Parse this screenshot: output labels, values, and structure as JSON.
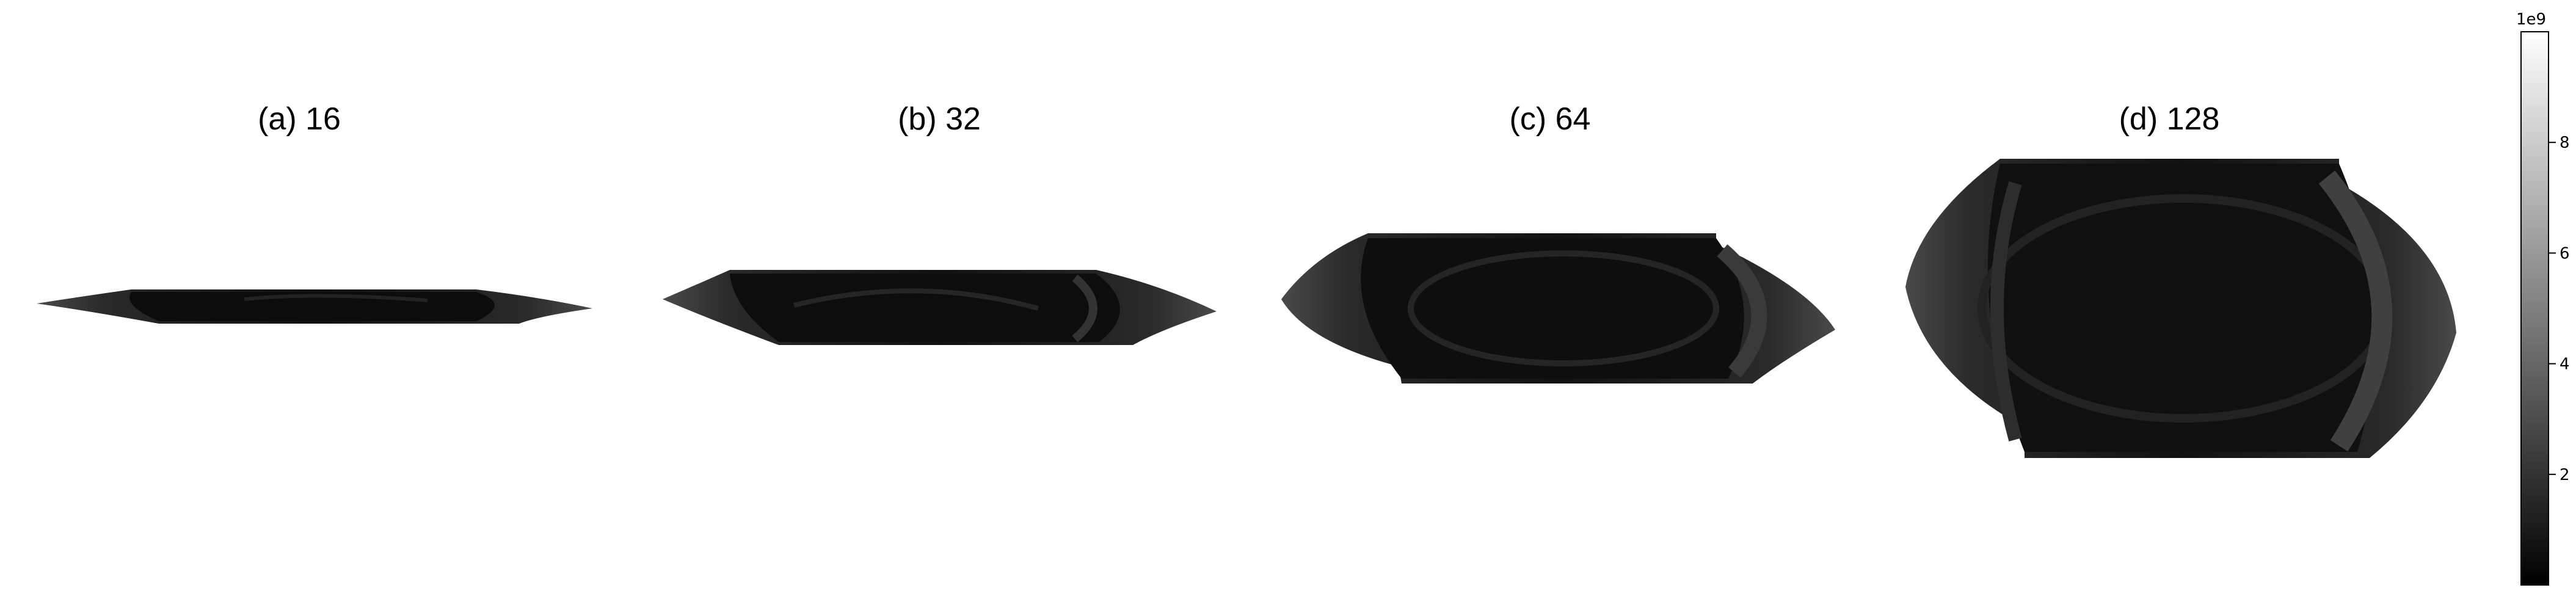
{
  "figure": {
    "panels": [
      {
        "label": "(a) 16"
      },
      {
        "label": "(b) 32"
      },
      {
        "label": "(c) 64"
      },
      {
        "label": "(d) 128"
      }
    ],
    "colorbar": {
      "exponent_label": "1e9",
      "ticks": [
        "2",
        "4",
        "6",
        "8"
      ]
    }
  },
  "chart_data": {
    "type": "heatmap",
    "panels": [
      {
        "title": "(a) 16",
        "n": 16
      },
      {
        "title": "(b) 32",
        "n": 32
      },
      {
        "title": "(c) 64",
        "n": 64
      },
      {
        "title": "(d) 128",
        "n": 128
      }
    ],
    "colormap": "gray",
    "colorbar": {
      "min": 0,
      "max": 10000000000.0,
      "offset_label": "1e9",
      "ticks": [
        2,
        4,
        6,
        8
      ]
    },
    "axes": "off",
    "colors": {
      "low": "#000000",
      "high": "#ffffff"
    }
  }
}
